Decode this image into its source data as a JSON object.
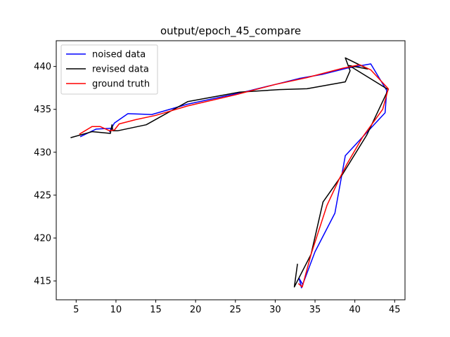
{
  "chart_data": {
    "type": "line",
    "title": "output/epoch_45_compare",
    "xlabel": "",
    "ylabel": "",
    "xlim": [
      2.5,
      46.3
    ],
    "ylim": [
      412.8,
      443.0
    ],
    "xticks": [
      5,
      10,
      15,
      20,
      25,
      30,
      35,
      40,
      45
    ],
    "yticks": [
      415,
      420,
      425,
      430,
      435,
      440
    ],
    "grid": false,
    "legend_position": "upper-left",
    "series": [
      {
        "name": "noised data",
        "color": "#0000ff",
        "x": [
          5.5,
          7.5,
          9.5,
          9.2,
          9.8,
          11.5,
          14.5,
          19,
          26,
          30,
          33,
          36,
          39,
          42,
          44,
          43.8,
          41,
          38.8,
          37.5,
          35,
          33.3,
          33,
          33.5
        ],
        "y": [
          431.8,
          432.7,
          432.8,
          432.4,
          433.4,
          434.5,
          434.4,
          435.6,
          437,
          437.9,
          438.6,
          439.1,
          439.8,
          440.3,
          437.2,
          434.6,
          431.8,
          429.6,
          422.9,
          418.4,
          414.2,
          415.3,
          414.5
        ]
      },
      {
        "name": "revised data",
        "color": "#000000",
        "x": [
          4.3,
          7,
          9.3,
          9.5,
          9.6,
          10.2,
          13.8,
          19,
          25.5,
          30.5,
          34,
          38.8,
          39.4,
          38.8,
          41,
          41.6,
          39.3,
          44.2,
          41.5,
          38.5,
          36,
          34.5,
          32.4,
          32.8
        ],
        "y": [
          431.7,
          432.4,
          432.2,
          433.2,
          432.5,
          432.5,
          433.2,
          435.9,
          437,
          437.3,
          437.4,
          438.2,
          439.5,
          441,
          440,
          439.7,
          440.1,
          437.3,
          432,
          427.5,
          424.2,
          418.1,
          414.3,
          417
        ]
      },
      {
        "name": "ground truth",
        "color": "#ff0000",
        "x": [
          5.4,
          7,
          8,
          9.2,
          9.8,
          10.4,
          12.5,
          15,
          19,
          25,
          30,
          34,
          38.5,
          40.6,
          42,
          44.2,
          43.5,
          41,
          39,
          38,
          36.5,
          34.5,
          33.4,
          32.9
        ],
        "y": [
          432.1,
          433,
          433,
          432.5,
          432.6,
          433.3,
          433.8,
          434.3,
          435.4,
          436.7,
          437.9,
          438.7,
          439.8,
          440.2,
          439.6,
          437.4,
          435,
          431.8,
          428.6,
          426.8,
          423.8,
          418.1,
          414.3,
          414.7
        ]
      }
    ]
  }
}
